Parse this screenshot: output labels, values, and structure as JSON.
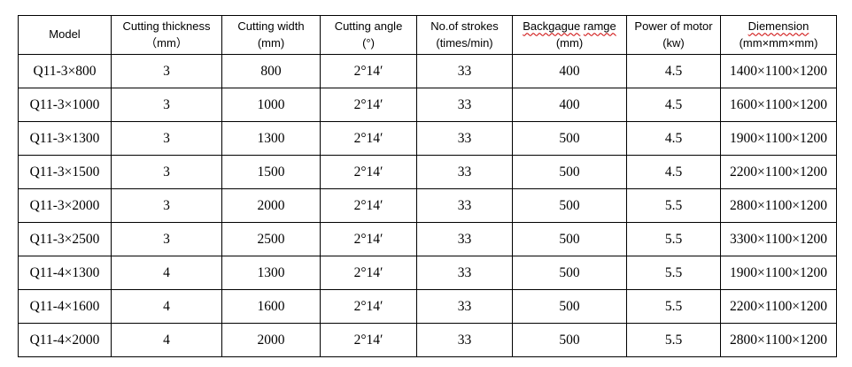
{
  "page": {
    "background_color": "#ffffff",
    "text_color": "#000000",
    "border_color": "#000000",
    "spellcheck_underline_color": "#cc0000"
  },
  "table": {
    "headers": [
      {
        "line1": "Model",
        "line2": ""
      },
      {
        "line1": "Cutting thickness",
        "line2": "（mm）"
      },
      {
        "line1": "Cutting width",
        "line2": "(mm)"
      },
      {
        "line1": "Cutting angle",
        "line2": "(°)"
      },
      {
        "line1": "No.of strokes",
        "line2": "(times/min)"
      },
      {
        "word1": "Backgague",
        "word2": "ramge",
        "line2": "(mm)"
      },
      {
        "line1": "Power of motor",
        "line2": "(kw)"
      },
      {
        "line1": "Diemension",
        "line2": "(mm×mm×mm)"
      }
    ],
    "rows": [
      {
        "cells": [
          "Q11-3×800",
          "3",
          "800",
          "2°14′",
          "33",
          "400",
          "4.5",
          "1400×1100×1200"
        ]
      },
      {
        "cells": [
          "Q11-3×1000",
          "3",
          "1000",
          "2°14′",
          "33",
          "400",
          "4.5",
          "1600×1100×1200"
        ]
      },
      {
        "cells": [
          "Q11-3×1300",
          "3",
          "1300",
          "2°14′",
          "33",
          "500",
          "4.5",
          "1900×1100×1200"
        ]
      },
      {
        "cells": [
          "Q11-3×1500",
          "3",
          "1500",
          "2°14′",
          "33",
          "500",
          "4.5",
          "2200×1100×1200"
        ]
      },
      {
        "cells": [
          "Q11-3×2000",
          "3",
          "2000",
          "2°14′",
          "33",
          "500",
          "5.5",
          "2800×1100×1200"
        ]
      },
      {
        "cells": [
          "Q11-3×2500",
          "3",
          "2500",
          "2°14′",
          "33",
          "500",
          "5.5",
          "3300×1100×1200"
        ]
      },
      {
        "cells": [
          "Q11-4×1300",
          "4",
          "1300",
          "2°14′",
          "33",
          "500",
          "5.5",
          "1900×1100×1200"
        ]
      },
      {
        "cells": [
          "Q11-4×1600",
          "4",
          "1600",
          "2°14′",
          "33",
          "500",
          "5.5",
          "2200×1100×1200"
        ]
      },
      {
        "cells": [
          "Q11-4×2000",
          "4",
          "2000",
          "2°14′",
          "33",
          "500",
          "5.5",
          "2800×1100×1200"
        ]
      }
    ]
  }
}
